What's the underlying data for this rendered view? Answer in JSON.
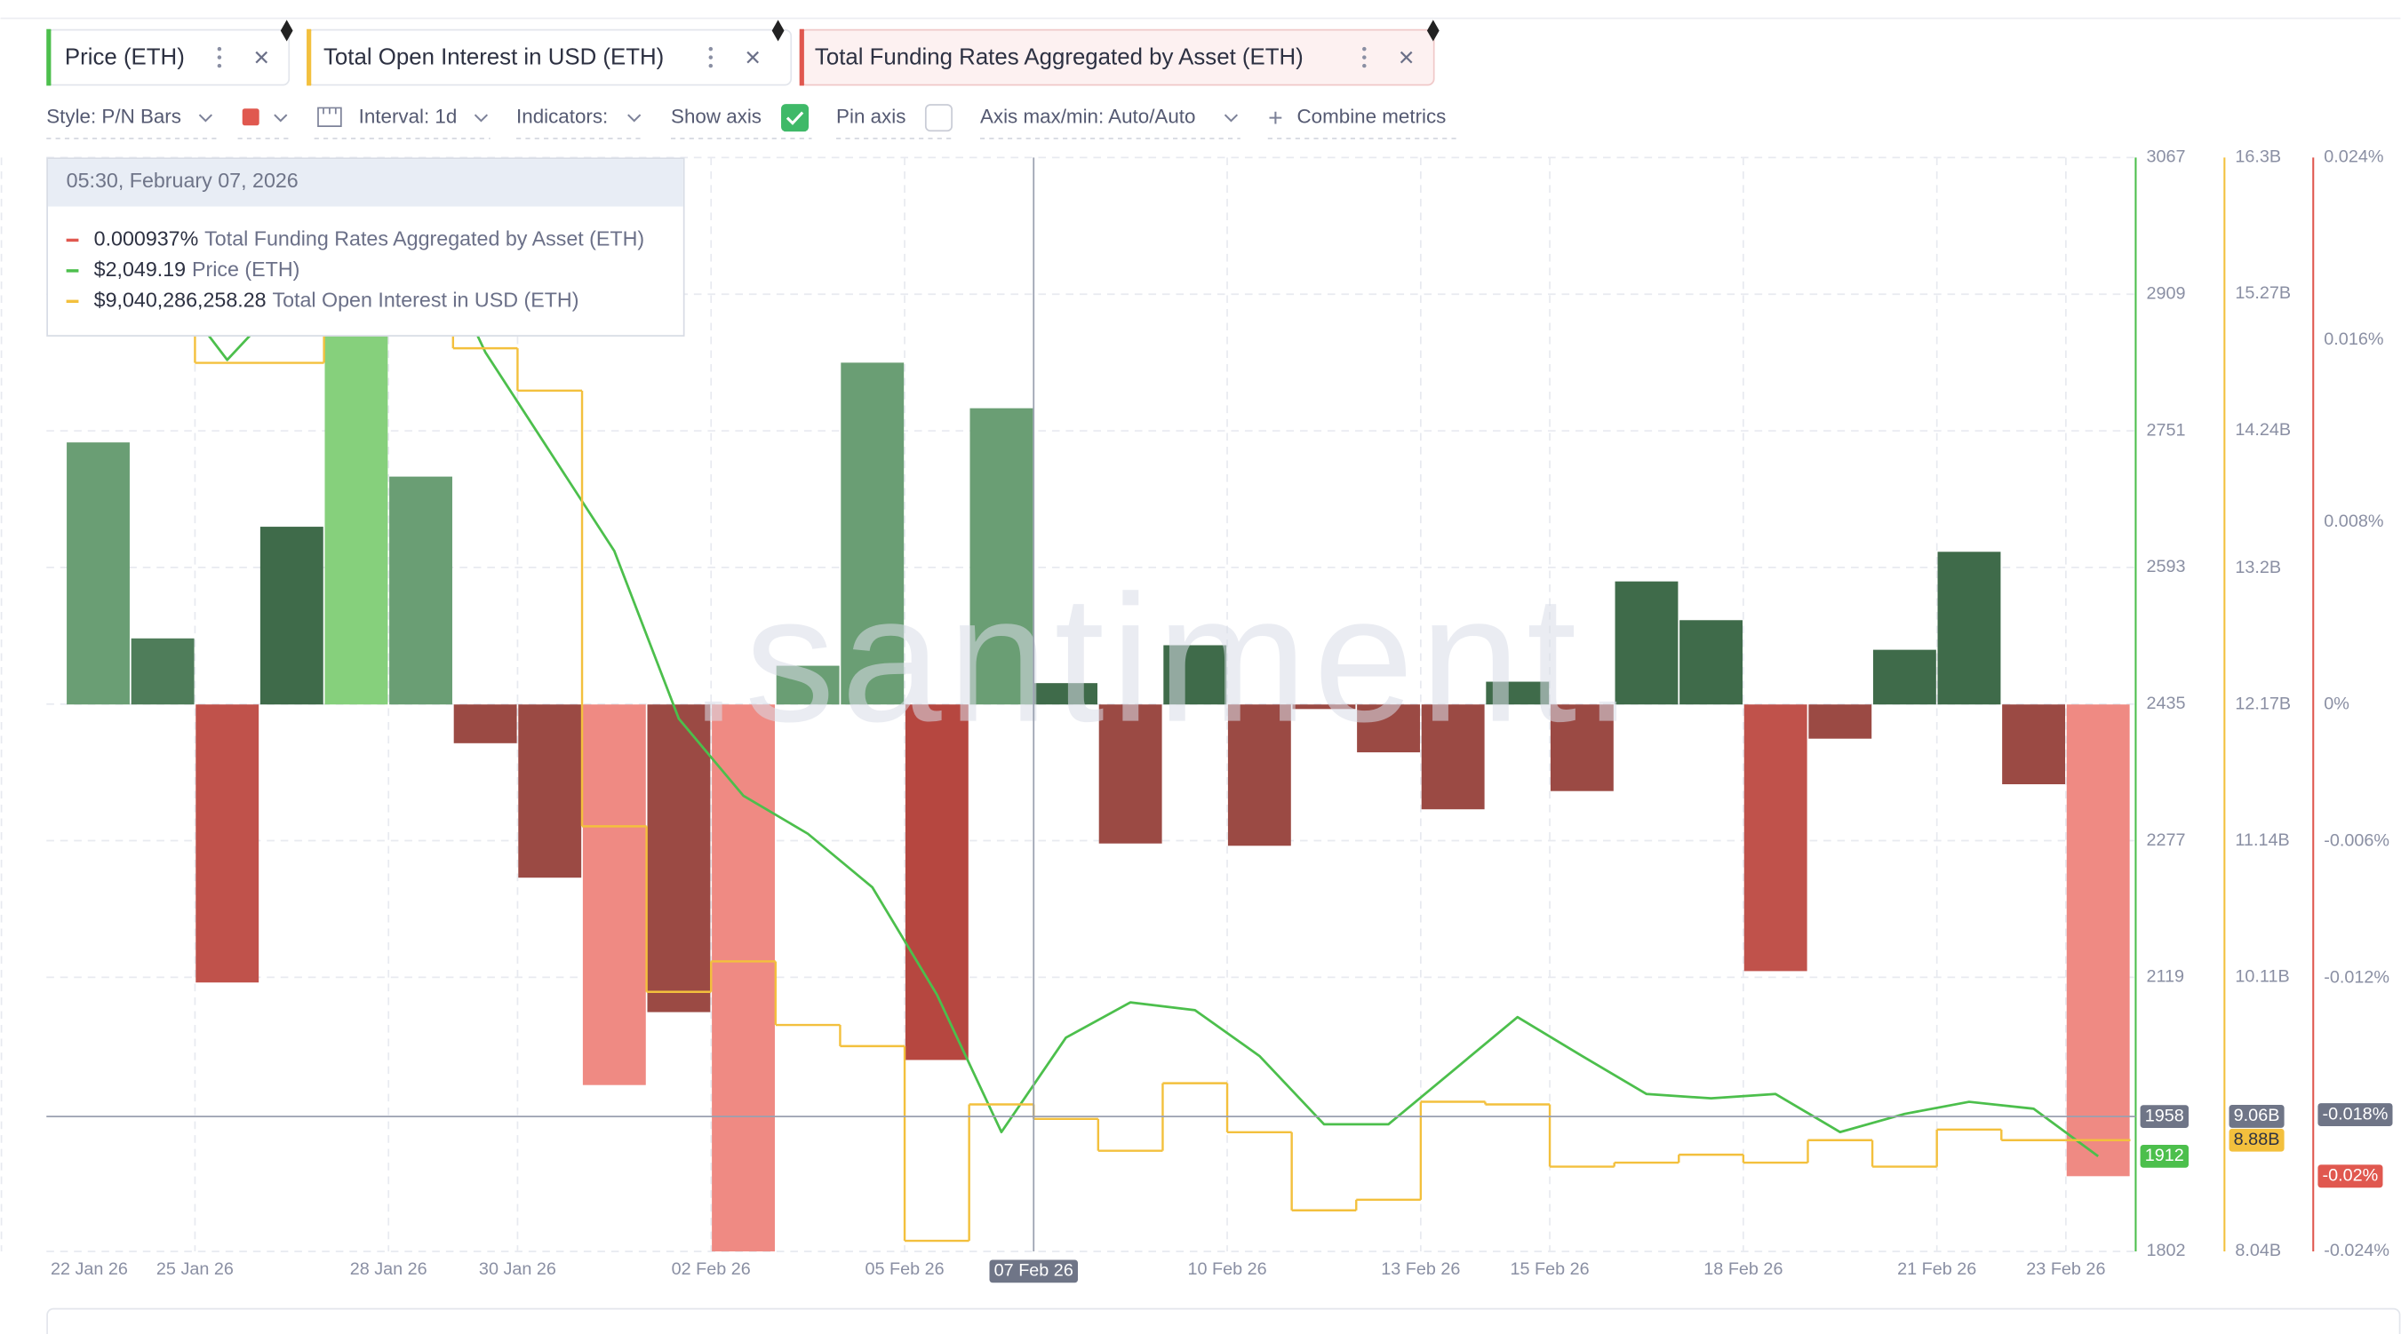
{
  "tabs_bar": true,
  "toolbar": {
    "style": "Style: P/N Bars",
    "interval": "Interval: 1d",
    "indicators": "Indicators:",
    "show_axis": "Show axis",
    "pin_axis": "Pin axis",
    "axis_range": "Axis max/min: Auto/Auto",
    "combine": "Combine metrics"
  },
  "tooltip": {
    "title": "05:30, February 07, 2026",
    "rows": [
      "0.000937%",
      "$2,049.19",
      "$9,040,286,258.28"
    ]
  },
  "watermark": ".santiment.",
  "chart_data": {
    "type": "combo",
    "grid": true,
    "x": [
      "2026-01-23",
      "2026-01-24",
      "2026-01-25",
      "2026-01-26",
      "2026-01-27",
      "2026-01-28",
      "2026-01-29",
      "2026-01-30",
      "2026-01-31",
      "2026-02-01",
      "2026-02-02",
      "2026-02-03",
      "2026-02-04",
      "2026-02-05",
      "2026-02-06",
      "2026-02-07",
      "2026-02-08",
      "2026-02-09",
      "2026-02-10",
      "2026-02-11",
      "2026-02-12",
      "2026-02-13",
      "2026-02-14",
      "2026-02-15",
      "2026-02-16",
      "2026-02-17",
      "2026-02-18",
      "2026-02-19",
      "2026-02-20",
      "2026-02-21",
      "2026-02-22",
      "2026-02-23"
    ],
    "xticks": [
      {
        "value": "2026-01-22",
        "label": "22 Jan 26"
      },
      {
        "value": "2026-01-25",
        "label": "25 Jan 26"
      },
      {
        "value": "2026-01-28",
        "label": "28 Jan 26"
      },
      {
        "value": "2026-01-30",
        "label": "30 Jan 26"
      },
      {
        "value": "2026-02-02",
        "label": "02 Feb 26"
      },
      {
        "value": "2026-02-05",
        "label": "05 Feb 26"
      },
      {
        "value": "2026-02-10",
        "label": "10 Feb 26"
      },
      {
        "value": "2026-02-13",
        "label": "13 Feb 26"
      },
      {
        "value": "2026-02-15",
        "label": "15 Feb 26"
      },
      {
        "value": "2026-02-18",
        "label": "18 Feb 26"
      },
      {
        "value": "2026-02-21",
        "label": "21 Feb 26"
      },
      {
        "value": "2026-02-23",
        "label": "23 Feb 26"
      }
    ],
    "ylim": [
      1802,
      3067
    ],
    "yticks": [
      1802,
      2119,
      2277,
      2435,
      2593,
      2751,
      2909,
      3067
    ],
    "y2lim": [
      8040000000,
      16300000000
    ],
    "y2ticks": [
      {
        "value": 8040000000,
        "label": "8.04B"
      },
      {
        "value": 10110000000,
        "label": "10.11B"
      },
      {
        "value": 11140000000,
        "label": "11.14B"
      },
      {
        "value": 12170000000,
        "label": "12.17B"
      },
      {
        "value": 13200000000,
        "label": "13.2B"
      },
      {
        "value": 14240000000,
        "label": "14.24B"
      },
      {
        "value": 15270000000,
        "label": "15.27B"
      },
      {
        "value": 16300000000,
        "label": "16.3B"
      }
    ],
    "y3lim": [
      -0.024,
      0.024
    ],
    "y3ticks": [
      {
        "value": -0.024,
        "label": "-0.024%"
      },
      {
        "value": -0.012,
        "label": "-0.012%"
      },
      {
        "value": -0.006,
        "label": "-0.006%"
      },
      {
        "value": 0,
        "label": "0%"
      },
      {
        "value": 0.008,
        "label": "0.008%"
      },
      {
        "value": 0.016,
        "label": "0.016%"
      },
      {
        "value": 0.024,
        "label": "0.024%"
      }
    ],
    "crosshair": {
      "x": {
        "value": "2026-02-07",
        "label": "07 Feb 26"
      },
      "y": 1958,
      "y2": {
        "value": 9060000000,
        "label": "9.06B"
      },
      "y3": {
        "value": -0.018,
        "label": "-0.018%"
      }
    },
    "series": [
      {
        "name": "Price (ETH)",
        "type": "line",
        "axis": "y",
        "color": "#4cbf4c",
        "values": [
          2948,
          2931,
          2833,
          2913,
          2984,
          3001,
          2842,
          2727,
          2612,
          2418,
          2329,
          2285,
          2223,
          2099,
          1940,
          2049.19,
          2090,
          2081,
          2028,
          1949,
          1949,
          2011,
          2073,
          2028,
          1984,
          1979,
          1984,
          1940,
          1961,
          1975,
          1967,
          1912
        ]
      },
      {
        "name": "Total Open Interest in USD (ETH)",
        "type": "step",
        "axis": "y2",
        "color": "#f3c03d",
        "values": [
          15180000000,
          15180000000,
          14750000000,
          14750000000,
          15200000000,
          15200000000,
          14860000000,
          14540000000,
          11250000000,
          10000000000,
          10230000000,
          9750000000,
          9590000000,
          8120000000,
          9150000000,
          9040286258.28,
          8800000000,
          9310000000,
          8940000000,
          8350000000,
          8430000000,
          9170000000,
          9150000000,
          8680000000,
          8710000000,
          8770000000,
          8710000000,
          8880000000,
          8680000000,
          8960000000,
          8880000000,
          8880000000
        ],
        "value_labels": [
          null,
          null,
          null,
          null,
          null,
          null,
          null,
          null,
          null,
          null,
          null,
          null,
          null,
          null,
          null,
          null,
          null,
          null,
          null,
          null,
          null,
          null,
          null,
          null,
          null,
          null,
          null,
          null,
          null,
          null,
          null,
          "8.88B"
        ]
      },
      {
        "name": "Total Funding Rates Aggregated by Asset (ETH)",
        "type": "bar",
        "axis": "y3",
        "color": "#e0584f",
        "values": [
          0.0115,
          0.0029,
          -0.0122,
          0.0078,
          0.02,
          0.01,
          -0.0017,
          -0.0076,
          -0.0167,
          -0.0135,
          -0.024,
          0.0017,
          0.015,
          -0.0156,
          0.013,
          0.000937,
          -0.0061,
          0.0026,
          -0.0062,
          -0.0002,
          -0.0021,
          -0.0046,
          0.001,
          -0.0038,
          0.0054,
          0.0037,
          -0.0117,
          -0.0015,
          0.0024,
          0.0067,
          -0.0035,
          -0.0207
        ],
        "colors": [
          "#6a9e74",
          "#4f7d5a",
          "#c0524b",
          "#3f6b4a",
          "#86d07c",
          "#6a9e74",
          "#9b4a44",
          "#9b4a44",
          "#ef8a83",
          "#9b4a44",
          "#ef8a83",
          "#6a9e74",
          "#6a9e74",
          "#b64740",
          "#6a9e74",
          "#3f6b4a",
          "#9b4a44",
          "#3f6b4a",
          "#9b4a44",
          "#9b4a44",
          "#9b4a44",
          "#9b4a44",
          "#3f6b4a",
          "#9b4a44",
          "#3f6b4a",
          "#3f6b4a",
          "#c0524b",
          "#9b4a44",
          "#3f6b4a",
          "#3f6b4a",
          "#9b4a44",
          "#ef8a83"
        ],
        "value_labels": [
          null,
          null,
          null,
          null,
          null,
          null,
          null,
          null,
          null,
          null,
          null,
          null,
          null,
          null,
          null,
          null,
          null,
          null,
          null,
          null,
          null,
          null,
          null,
          null,
          null,
          null,
          null,
          null,
          null,
          null,
          null,
          "-0.02%"
        ]
      }
    ]
  }
}
